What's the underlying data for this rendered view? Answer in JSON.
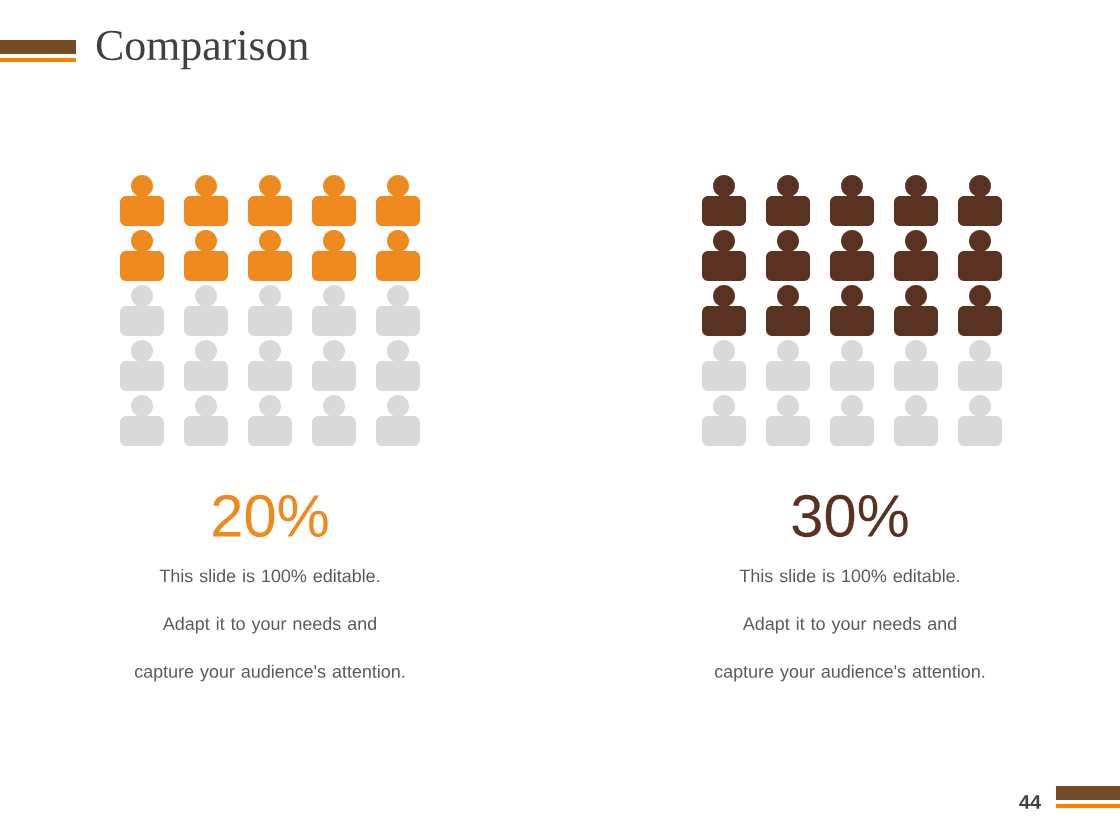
{
  "chart_data": [
    {
      "type": "other",
      "title": "Comparison",
      "values": [
        20
      ],
      "value_labels": [
        "20%"
      ],
      "color": "#ee8a1e",
      "annotations": [
        "This slide is 100% editable. Adapt it to your needs and capture your audience's attention."
      ]
    },
    {
      "type": "other",
      "values": [
        30
      ],
      "value_labels": [
        "30%"
      ],
      "color": "#5a3222",
      "annotations": [
        "This slide is 100% editable. Adapt it to your needs and capture your audience's attention.",
        "44"
      ]
    }
  ]
}
